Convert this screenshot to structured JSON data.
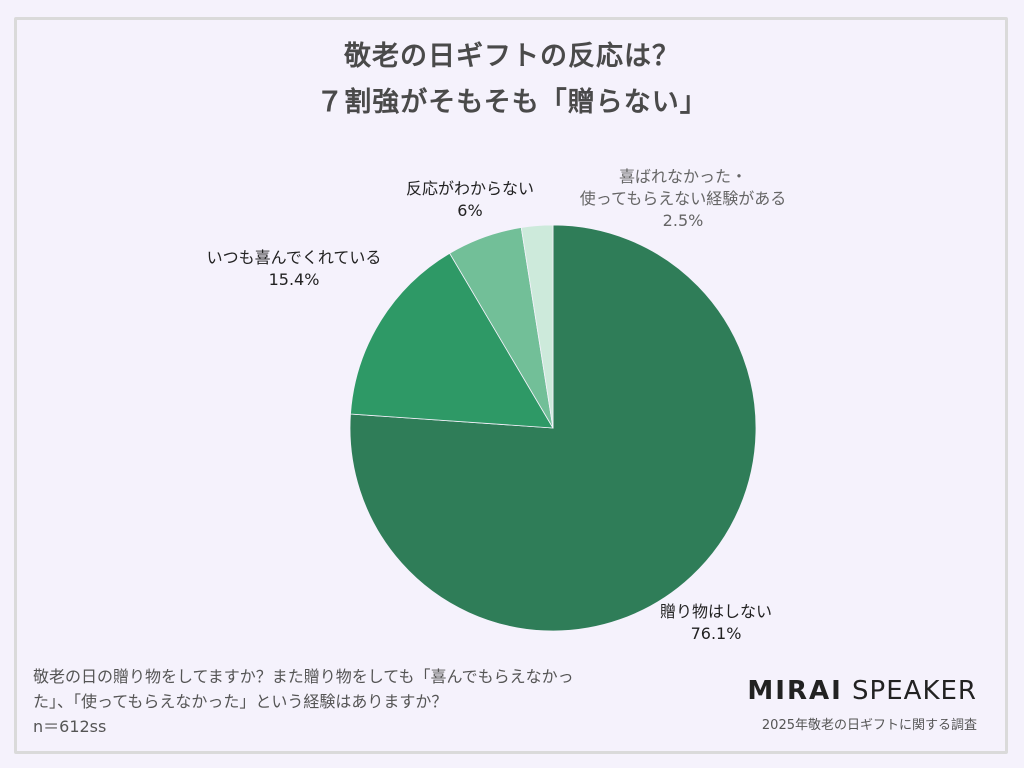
{
  "title": {
    "line1": "敬老の日ギフトの反応は？",
    "line2": "７割強がそもそも「贈らない」"
  },
  "chart_data": {
    "type": "pie",
    "title": "敬老の日ギフトの反応は？ ７割強がそもそも「贈らない」",
    "start_angle": "12 o'clock",
    "direction": "clockwise",
    "categories": [
      "贈り物はしない",
      "いつも喜んでくれている",
      "反応がわからない",
      "喜ばれなかった・使ってもらえない経験がある"
    ],
    "values": [
      76.1,
      15.4,
      6,
      2.5
    ],
    "unit": "%",
    "colors": [
      "#2f7d58",
      "#2e9966",
      "#72bf98",
      "#cdeadb"
    ],
    "labels": [
      {
        "name": "贈り物はしない",
        "value": "76.1%"
      },
      {
        "name": "いつも喜んでくれている",
        "value": "15.4%"
      },
      {
        "name": "反応がわからない",
        "value": "6%"
      },
      {
        "name_line1": "喜ばれなかった・",
        "name_line2": "使ってもらえない経験がある",
        "value": "2.5%"
      }
    ]
  },
  "footnote": {
    "line1": "敬老の日の贈り物をしてますか？また贈り物をしても「喜んでもらえなかっ",
    "line2": "た」、「使ってもらえなかった」という経験はありますか？",
    "line3": "n＝612ss"
  },
  "brand": {
    "bold": "MIRAI",
    "light": "SPEAKER",
    "subtitle": "2025年敬老の日ギフトに関する調査"
  }
}
